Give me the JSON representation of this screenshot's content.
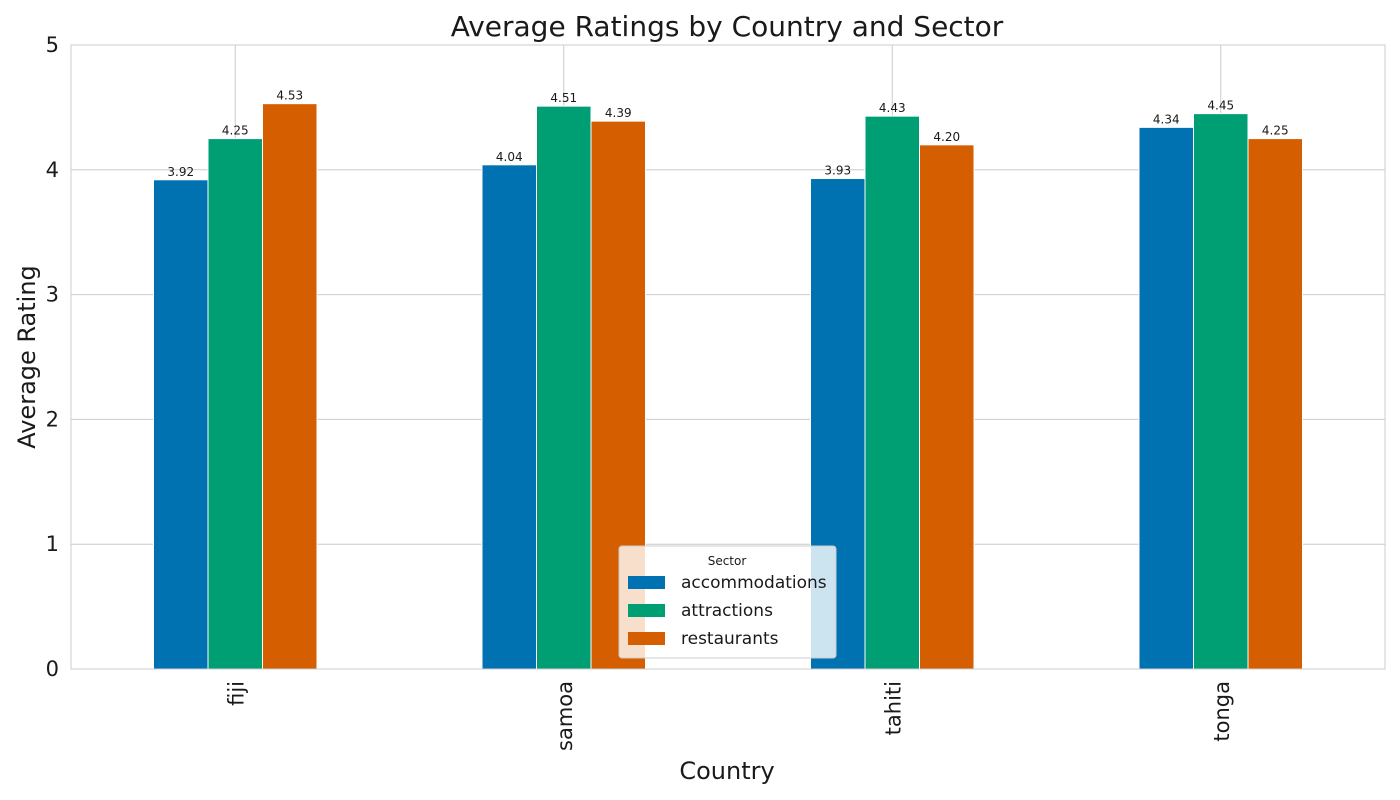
{
  "chart_data": {
    "type": "bar",
    "title": "Average Ratings by Country and Sector",
    "xlabel": "Country",
    "ylabel": "Average Rating",
    "categories": [
      "fiji",
      "samoa",
      "tahiti",
      "tonga"
    ],
    "series": [
      {
        "name": "accommodations",
        "color": "#0072b2",
        "values": [
          3.92,
          4.04,
          3.93,
          4.34
        ],
        "labels": [
          "3.92",
          "4.04",
          "3.93",
          "4.34"
        ]
      },
      {
        "name": "attractions",
        "color": "#009e73",
        "values": [
          4.25,
          4.51,
          4.43,
          4.45
        ],
        "labels": [
          "4.25",
          "4.51",
          "4.43",
          "4.45"
        ]
      },
      {
        "name": "restaurants",
        "color": "#d55e00",
        "values": [
          4.53,
          4.39,
          4.2,
          4.25
        ],
        "labels": [
          "4.53",
          "4.39",
          "4.20",
          "4.25"
        ]
      }
    ],
    "ylim": [
      0,
      5
    ],
    "yticks": [
      "0",
      "1",
      "2",
      "3",
      "4",
      "5"
    ],
    "grid": true,
    "legend": {
      "title": "Sector",
      "placement": "lower-center"
    }
  }
}
